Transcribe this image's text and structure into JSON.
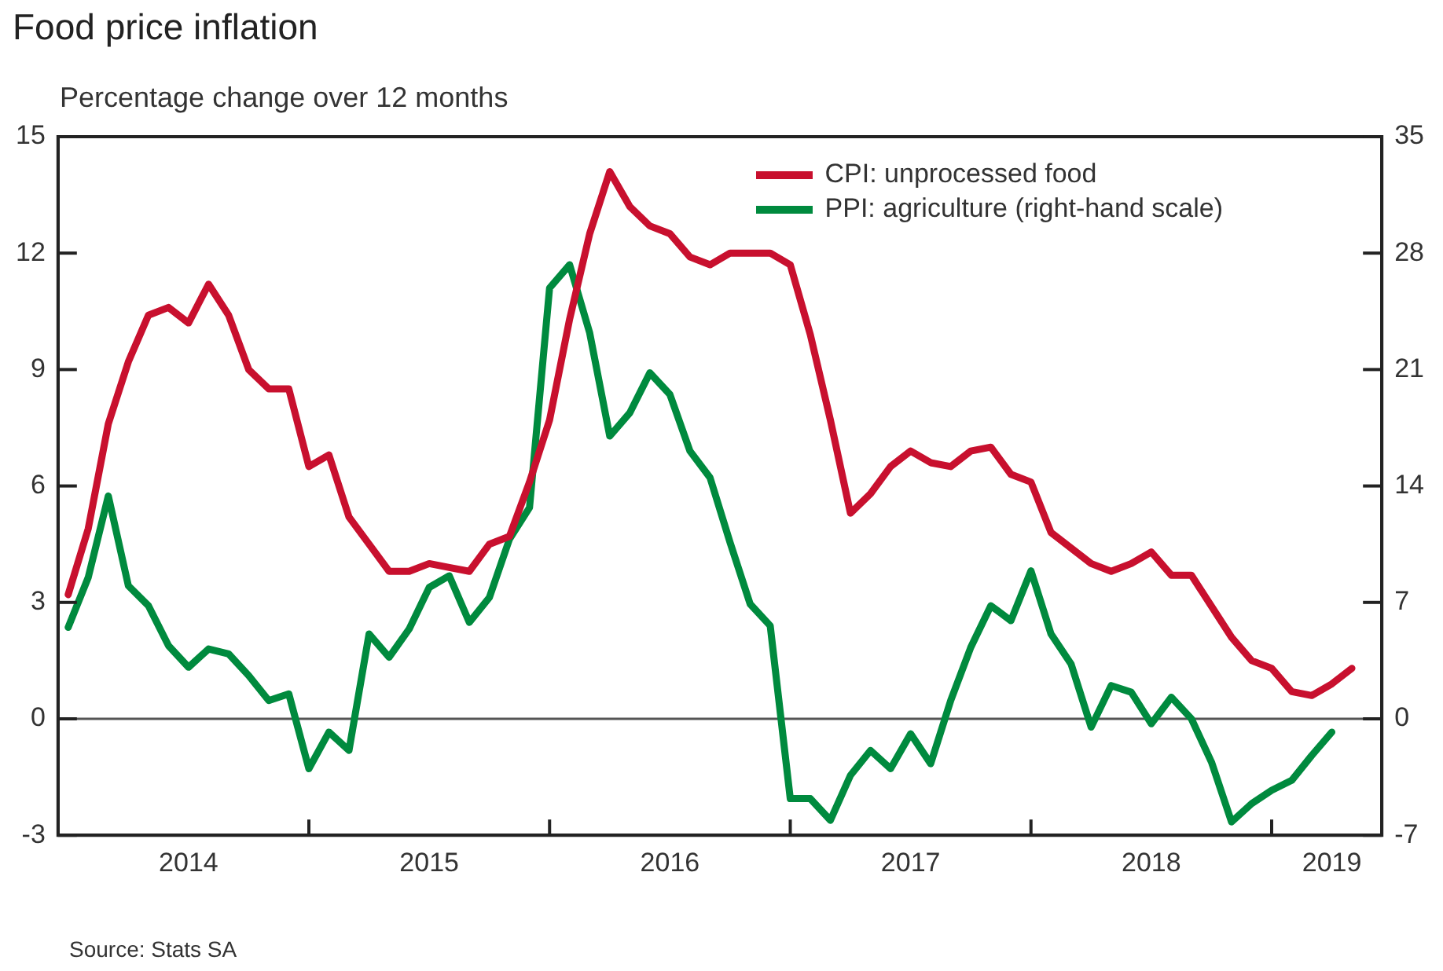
{
  "chart_data": {
    "type": "line",
    "title": "Food price inflation",
    "subtitle": "Percentage change over 12 months",
    "annotations": [
      "Source: Stats SA"
    ],
    "x": [
      "2014-01",
      "2014-02",
      "2014-03",
      "2014-04",
      "2014-05",
      "2014-06",
      "2014-07",
      "2014-08",
      "2014-09",
      "2014-10",
      "2014-11",
      "2014-12",
      "2015-01",
      "2015-02",
      "2015-03",
      "2015-04",
      "2015-05",
      "2015-06",
      "2015-07",
      "2015-08",
      "2015-09",
      "2015-10",
      "2015-11",
      "2015-12",
      "2016-01",
      "2016-02",
      "2016-03",
      "2016-04",
      "2016-05",
      "2016-06",
      "2016-07",
      "2016-08",
      "2016-09",
      "2016-10",
      "2016-11",
      "2016-12",
      "2017-01",
      "2017-02",
      "2017-03",
      "2017-04",
      "2017-05",
      "2017-06",
      "2017-07",
      "2017-08",
      "2017-09",
      "2017-10",
      "2017-11",
      "2017-12",
      "2018-01",
      "2018-02",
      "2018-03",
      "2018-04",
      "2018-05",
      "2018-06",
      "2018-07",
      "2018-08",
      "2018-09",
      "2018-10",
      "2018-11",
      "2018-12",
      "2019-01",
      "2019-02",
      "2019-03",
      "2019-04",
      "2019-05"
    ],
    "series": [
      {
        "name": "CPI: unprocessed food",
        "color": "#c8102e",
        "values": [
          3.2,
          4.9,
          7.6,
          9.2,
          10.4,
          10.6,
          10.2,
          11.2,
          10.4,
          9.0,
          8.5,
          8.5,
          6.5,
          6.8,
          5.2,
          4.5,
          3.8,
          3.8,
          4.0,
          3.9,
          3.8,
          4.5,
          4.7,
          6.1,
          7.7,
          10.3,
          12.5,
          14.1,
          13.2,
          12.7,
          12.5,
          11.9,
          11.7,
          12.0,
          12.0,
          12.0,
          11.7,
          9.9,
          7.7,
          5.3,
          5.8,
          6.5,
          6.9,
          6.6,
          6.5,
          6.9,
          7.0,
          6.3,
          6.1,
          4.8,
          4.4,
          4.0,
          3.8,
          4.0,
          4.3,
          3.7,
          3.7,
          2.9,
          2.1,
          1.5,
          1.3,
          0.7,
          0.6,
          0.9,
          1.3
        ]
      },
      {
        "name": "PPI: agriculture (right-hand scale)",
        "color": "#008a3e",
        "axis": "y2",
        "values": [
          5.5,
          8.5,
          13.4,
          8.0,
          6.8,
          4.4,
          3.1,
          4.2,
          3.9,
          2.6,
          1.1,
          1.5,
          -3.0,
          -0.8,
          -1.9,
          5.1,
          3.7,
          5.4,
          7.9,
          8.6,
          5.8,
          7.3,
          10.8,
          12.7,
          25.9,
          27.3,
          23.2,
          17.0,
          18.4,
          20.8,
          19.5,
          16.1,
          14.5,
          10.6,
          6.9,
          5.6,
          -4.8,
          -4.8,
          -6.1,
          -3.4,
          -1.9,
          -3.0,
          -0.9,
          -2.7,
          1.1,
          4.3,
          6.8,
          5.9,
          8.9,
          5.1,
          3.3,
          -0.5,
          2.0,
          1.6,
          -0.3,
          1.3,
          0.0,
          -2.6,
          -6.2,
          -5.1,
          -4.3,
          -3.7,
          -2.2,
          -0.8,
          null
        ]
      }
    ],
    "xlim": [
      "2013-12-16",
      "2019-06-16"
    ],
    "xticks": [
      {
        "value": "2014-07-01",
        "label": "2014"
      },
      {
        "value": "2015-01-01",
        "label": null
      },
      {
        "value": "2015-07-01",
        "label": "2015"
      },
      {
        "value": "2016-01-01",
        "label": null
      },
      {
        "value": "2016-07-01",
        "label": "2016"
      },
      {
        "value": "2017-01-01",
        "label": null
      },
      {
        "value": "2017-07-01",
        "label": "2017"
      },
      {
        "value": "2018-01-01",
        "label": null
      },
      {
        "value": "2018-07-01",
        "label": "2018"
      },
      {
        "value": "2019-01-01",
        "label": null
      },
      {
        "value": "2019-04-01",
        "label": "2019"
      }
    ],
    "ylim": [
      -3,
      15
    ],
    "yticks": [
      -3,
      0,
      3,
      6,
      9,
      12,
      15
    ],
    "y2lim": [
      -7,
      35
    ],
    "y2ticks": [
      -7,
      0,
      7,
      14,
      21,
      28,
      35
    ],
    "ref_lines": [
      {
        "axis": "y",
        "value": 0,
        "color": "#555555"
      }
    ],
    "grid": false,
    "legend": "top right",
    "marker": "none",
    "line_style": "solid"
  }
}
